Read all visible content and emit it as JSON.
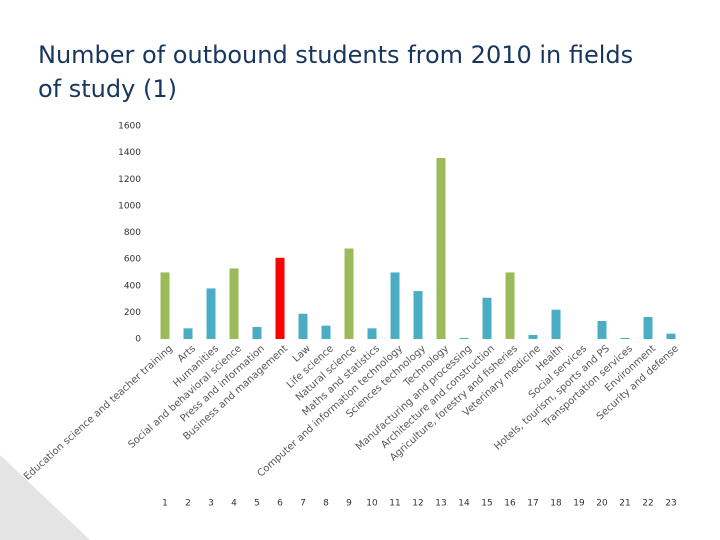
{
  "chart_data": {
    "type": "bar",
    "title": "Number of outbound students from 2010 in fields of study (1)",
    "categories": [
      "Education science and teacher training",
      "Arts",
      "Humanities",
      "Social and behavioral science",
      "Press and information",
      "Business and management",
      "Law",
      "Life science",
      "Natural science",
      "Maths and statistics",
      "Computer and information technology",
      "Sciences technology",
      "Technology",
      "Manufacturing and processing",
      "Architecture and construction",
      "Agriculture, forestry and fisheries",
      "Veterinary medicine",
      "Health",
      "Social services",
      "Hotels, tourism, sports and PS",
      "Transportation services",
      "Environment",
      "Security and defense"
    ],
    "category_numbers": [
      1,
      2,
      3,
      4,
      5,
      6,
      7,
      8,
      9,
      10,
      11,
      12,
      13,
      14,
      15,
      16,
      17,
      18,
      19,
      20,
      21,
      22,
      23
    ],
    "values": [
      500,
      80,
      380,
      530,
      90,
      610,
      190,
      100,
      680,
      80,
      500,
      360,
      1360,
      8,
      310,
      500,
      30,
      220,
      0,
      135,
      8,
      165,
      40
    ],
    "colors": [
      "#9bbb59",
      "#4bacc6",
      "#4bacc6",
      "#9bbb59",
      "#4bacc6",
      "#ff0000",
      "#4bacc6",
      "#4bacc6",
      "#9bbb59",
      "#4bacc6",
      "#4bacc6",
      "#4bacc6",
      "#9bbb59",
      "#4bacc6",
      "#4bacc6",
      "#9bbb59",
      "#4bacc6",
      "#4bacc6",
      "#4bacc6",
      "#4bacc6",
      "#4bacc6",
      "#4bacc6",
      "#4bacc6"
    ],
    "ylim": [
      0,
      1600
    ],
    "yticks": [
      0,
      200,
      400,
      600,
      800,
      1000,
      1200,
      1400,
      1600
    ],
    "grid": false
  }
}
